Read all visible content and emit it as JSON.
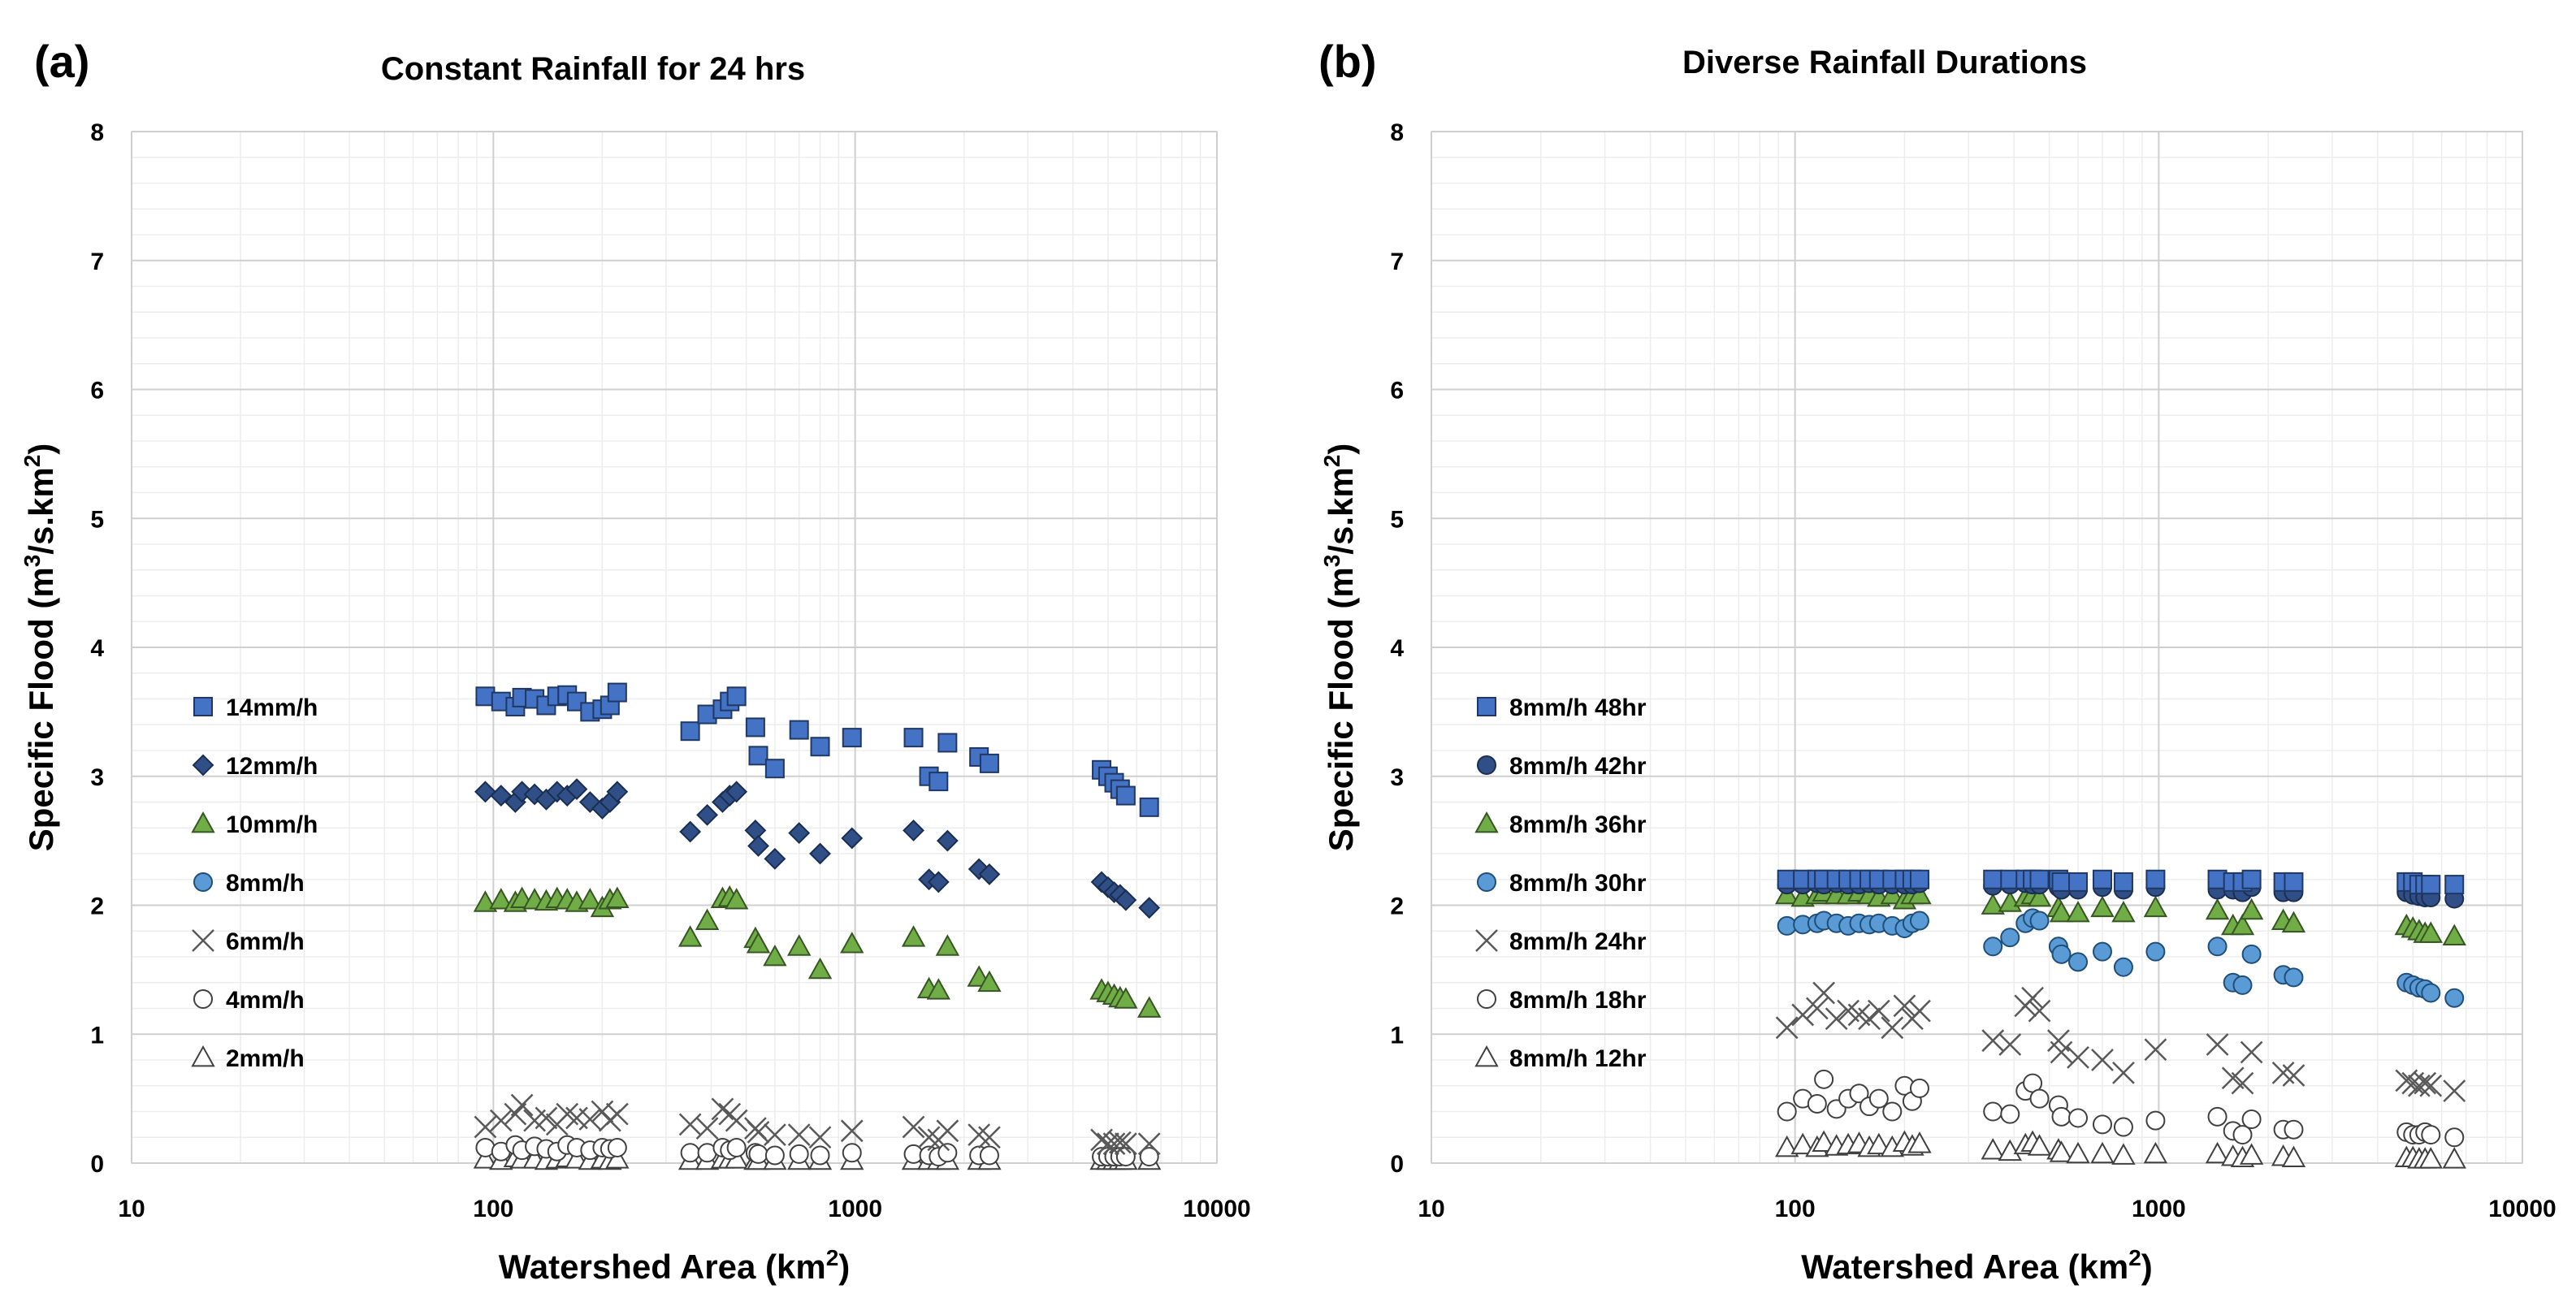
{
  "chart_data": [
    {
      "type": "scatter",
      "panel_label": "(a)",
      "title": "Constant Rainfall for 24 hrs",
      "xlabel": "Watershed Area (km²)",
      "xlabel_base": "Watershed Area (km",
      "xlabel_sup": "2",
      "xlabel_end": ")",
      "ylabel": "Specific Flood (m³/s.km²)",
      "ylabel_base": "Specific Flood (m",
      "ylabel_sup1": "3",
      "ylabel_mid": "/s.km",
      "ylabel_sup2": "2",
      "ylabel_end": ")",
      "xscale": "log",
      "xlim": [
        10,
        10000
      ],
      "ylim": [
        0,
        8
      ],
      "xticks": [
        10,
        100,
        1000,
        10000
      ],
      "xtick_labels": [
        "10",
        "100",
        "1000",
        "10000"
      ],
      "yticks": [
        0,
        1,
        2,
        3,
        4,
        5,
        6,
        7,
        8
      ],
      "ytick_labels": [
        "0",
        "1",
        "2",
        "3",
        "4",
        "5",
        "6",
        "7",
        "8"
      ],
      "grid": true,
      "legend_position": "left",
      "x": [
        95,
        105,
        115,
        120,
        130,
        140,
        150,
        160,
        170,
        185,
        200,
        210,
        220,
        350,
        390,
        430,
        450,
        470,
        530,
        540,
        600,
        700,
        800,
        980,
        1450,
        1600,
        1700,
        1800,
        2200,
        2350,
        4800,
        5000,
        5200,
        5400,
        5600,
        6500
      ],
      "series": [
        {
          "name": "14mm/h",
          "marker": "square",
          "fill": "#4472C4",
          "stroke": "#1F3864",
          "values": [
            3.62,
            3.58,
            3.54,
            3.61,
            3.6,
            3.55,
            3.62,
            3.63,
            3.58,
            3.5,
            3.52,
            3.55,
            3.65,
            3.35,
            3.48,
            3.52,
            3.58,
            3.62,
            3.38,
            3.16,
            3.06,
            3.36,
            3.23,
            3.3,
            3.3,
            3.0,
            2.96,
            3.26,
            3.15,
            3.1,
            3.05,
            3.0,
            2.95,
            2.9,
            2.85,
            2.76
          ]
        },
        {
          "name": "12mm/h",
          "marker": "diamond",
          "fill": "#2F4F86",
          "stroke": "#1A2E52",
          "values": [
            2.88,
            2.85,
            2.8,
            2.88,
            2.86,
            2.82,
            2.88,
            2.85,
            2.9,
            2.8,
            2.75,
            2.8,
            2.88,
            2.57,
            2.7,
            2.8,
            2.85,
            2.88,
            2.58,
            2.46,
            2.36,
            2.56,
            2.4,
            2.52,
            2.58,
            2.2,
            2.18,
            2.5,
            2.28,
            2.24,
            2.18,
            2.14,
            2.1,
            2.08,
            2.04,
            1.98
          ]
        },
        {
          "name": "10mm/h",
          "marker": "triangle",
          "fill": "#70AD47",
          "stroke": "#375623",
          "values": [
            2.02,
            2.04,
            2.02,
            2.05,
            2.04,
            2.03,
            2.05,
            2.04,
            2.02,
            2.04,
            1.98,
            2.04,
            2.05,
            1.75,
            1.88,
            2.05,
            2.06,
            2.04,
            1.74,
            1.7,
            1.6,
            1.68,
            1.5,
            1.7,
            1.75,
            1.35,
            1.34,
            1.68,
            1.44,
            1.4,
            1.34,
            1.32,
            1.3,
            1.28,
            1.27,
            1.2
          ]
        },
        {
          "name": "8mm/h",
          "marker": "circle",
          "fill": "#5B9BD5",
          "stroke": "#1F4E79",
          "values": []
        },
        {
          "name": "6mm/h",
          "marker": "x",
          "fill": "none",
          "stroke": "#595959",
          "values": [
            0.28,
            0.33,
            0.38,
            0.45,
            0.33,
            0.35,
            0.3,
            0.38,
            0.35,
            0.34,
            0.4,
            0.33,
            0.38,
            0.3,
            0.27,
            0.42,
            0.38,
            0.33,
            0.27,
            0.24,
            0.22,
            0.22,
            0.2,
            0.25,
            0.28,
            0.2,
            0.18,
            0.25,
            0.22,
            0.2,
            0.18,
            0.15,
            0.15,
            0.16,
            0.15,
            0.15
          ]
        },
        {
          "name": "4mm/h",
          "marker": "circle-open",
          "fill": "#ffffff",
          "stroke": "#404040",
          "values": [
            0.12,
            0.09,
            0.14,
            0.1,
            0.13,
            0.11,
            0.09,
            0.14,
            0.12,
            0.1,
            0.12,
            0.11,
            0.12,
            0.08,
            0.08,
            0.12,
            0.1,
            0.12,
            0.08,
            0.07,
            0.06,
            0.07,
            0.06,
            0.08,
            0.07,
            0.06,
            0.05,
            0.08,
            0.06,
            0.06,
            0.05,
            0.05,
            0.05,
            0.05,
            0.05,
            0.05
          ]
        },
        {
          "name": "2mm/h",
          "marker": "triangle-open",
          "fill": "#ffffff",
          "stroke": "#404040",
          "values": [
            0.03,
            0.02,
            0.04,
            0.03,
            0.03,
            0.02,
            0.03,
            0.04,
            0.03,
            0.02,
            0.03,
            0.02,
            0.03,
            0.02,
            0.02,
            0.03,
            0.03,
            0.03,
            0.02,
            0.02,
            0.02,
            0.02,
            0.02,
            0.02,
            0.02,
            0.02,
            0.02,
            0.02,
            0.02,
            0.02,
            0.02,
            0.02,
            0.02,
            0.02,
            0.02,
            0.02
          ]
        }
      ]
    },
    {
      "type": "scatter",
      "panel_label": "(b)",
      "title": "Diverse Rainfall Durations",
      "xlabel": "Watershed Area (km²)",
      "xlabel_base": "Watershed Area (km",
      "xlabel_sup": "2",
      "xlabel_end": ")",
      "ylabel": "Specific Flood (m³/s.km²)",
      "ylabel_base": "Specific Flood (m",
      "ylabel_sup1": "3",
      "ylabel_mid": "/s.km",
      "ylabel_sup2": "2",
      "ylabel_end": ")",
      "xscale": "log",
      "xlim": [
        10,
        10000
      ],
      "ylim": [
        0,
        8
      ],
      "xticks": [
        10,
        100,
        1000,
        10000
      ],
      "xtick_labels": [
        "10",
        "100",
        "1000",
        "10000"
      ],
      "yticks": [
        0,
        1,
        2,
        3,
        4,
        5,
        6,
        7,
        8
      ],
      "ytick_labels": [
        "0",
        "1",
        "2",
        "3",
        "4",
        "5",
        "6",
        "7",
        "8"
      ],
      "grid": true,
      "legend_position": "left",
      "x": [
        95,
        105,
        115,
        120,
        130,
        140,
        150,
        160,
        170,
        185,
        200,
        210,
        220,
        350,
        390,
        430,
        450,
        470,
        530,
        540,
        600,
        700,
        800,
        980,
        1450,
        1600,
        1700,
        1800,
        2200,
        2350,
        4800,
        5000,
        5200,
        5400,
        5600,
        6500
      ],
      "series": [
        {
          "name": "8mm/h 48hr",
          "marker": "square",
          "fill": "#4472C4",
          "stroke": "#1F3864",
          "values": [
            2.2,
            2.2,
            2.2,
            2.2,
            2.2,
            2.2,
            2.2,
            2.2,
            2.2,
            2.2,
            2.2,
            2.2,
            2.2,
            2.2,
            2.2,
            2.2,
            2.2,
            2.2,
            2.2,
            2.18,
            2.18,
            2.2,
            2.18,
            2.2,
            2.2,
            2.18,
            2.18,
            2.2,
            2.18,
            2.18,
            2.18,
            2.18,
            2.16,
            2.16,
            2.16,
            2.16
          ]
        },
        {
          "name": "8mm/h 42hr",
          "marker": "circle",
          "fill": "#2F4F86",
          "stroke": "#1A2E52",
          "values": [
            2.16,
            2.16,
            2.17,
            2.16,
            2.17,
            2.16,
            2.16,
            2.17,
            2.16,
            2.16,
            2.16,
            2.16,
            2.17,
            2.15,
            2.16,
            2.17,
            2.16,
            2.16,
            2.14,
            2.12,
            2.12,
            2.14,
            2.12,
            2.14,
            2.12,
            2.12,
            2.1,
            2.14,
            2.1,
            2.1,
            2.1,
            2.08,
            2.07,
            2.06,
            2.06,
            2.05
          ]
        },
        {
          "name": "8mm/h 36hr",
          "marker": "triangle",
          "fill": "#70AD47",
          "stroke": "#375623",
          "values": [
            2.08,
            2.06,
            2.08,
            2.1,
            2.08,
            2.08,
            2.1,
            2.08,
            2.06,
            2.08,
            2.04,
            2.08,
            2.08,
            2.0,
            2.02,
            2.06,
            2.08,
            2.06,
            1.98,
            1.94,
            1.94,
            1.98,
            1.94,
            1.98,
            1.96,
            1.84,
            1.84,
            1.96,
            1.88,
            1.86,
            1.84,
            1.82,
            1.8,
            1.78,
            1.78,
            1.76
          ]
        },
        {
          "name": "8mm/h 30hr",
          "marker": "circle",
          "fill": "#5B9BD5",
          "stroke": "#1F4E79",
          "values": [
            1.84,
            1.85,
            1.86,
            1.88,
            1.86,
            1.84,
            1.86,
            1.85,
            1.86,
            1.84,
            1.82,
            1.86,
            1.88,
            1.68,
            1.75,
            1.86,
            1.9,
            1.88,
            1.68,
            1.62,
            1.56,
            1.64,
            1.52,
            1.64,
            1.68,
            1.4,
            1.38,
            1.62,
            1.46,
            1.44,
            1.4,
            1.38,
            1.36,
            1.35,
            1.32,
            1.28
          ]
        },
        {
          "name": "8mm/h 24hr",
          "marker": "x",
          "fill": "none",
          "stroke": "#595959",
          "values": [
            1.05,
            1.15,
            1.2,
            1.32,
            1.12,
            1.18,
            1.15,
            1.12,
            1.18,
            1.05,
            1.22,
            1.12,
            1.18,
            0.95,
            0.92,
            1.22,
            1.28,
            1.18,
            0.95,
            0.86,
            0.82,
            0.8,
            0.7,
            0.88,
            0.92,
            0.66,
            0.62,
            0.86,
            0.7,
            0.68,
            0.64,
            0.62,
            0.6,
            0.62,
            0.6,
            0.56
          ]
        },
        {
          "name": "8mm/h 18hr",
          "marker": "circle-open",
          "fill": "#ffffff",
          "stroke": "#404040",
          "values": [
            0.4,
            0.5,
            0.46,
            0.65,
            0.42,
            0.5,
            0.54,
            0.44,
            0.5,
            0.4,
            0.6,
            0.48,
            0.58,
            0.4,
            0.38,
            0.56,
            0.62,
            0.5,
            0.45,
            0.36,
            0.35,
            0.3,
            0.28,
            0.33,
            0.36,
            0.25,
            0.22,
            0.34,
            0.26,
            0.26,
            0.24,
            0.22,
            0.22,
            0.24,
            0.22,
            0.2
          ]
        },
        {
          "name": "8mm/h 12hr",
          "marker": "triangle-open",
          "fill": "#ffffff",
          "stroke": "#404040",
          "values": [
            0.12,
            0.14,
            0.12,
            0.16,
            0.13,
            0.14,
            0.15,
            0.12,
            0.14,
            0.12,
            0.16,
            0.13,
            0.15,
            0.1,
            0.09,
            0.14,
            0.16,
            0.13,
            0.1,
            0.08,
            0.07,
            0.07,
            0.06,
            0.07,
            0.07,
            0.05,
            0.04,
            0.06,
            0.05,
            0.04,
            0.04,
            0.04,
            0.03,
            0.03,
            0.03,
            0.03
          ]
        }
      ]
    }
  ]
}
